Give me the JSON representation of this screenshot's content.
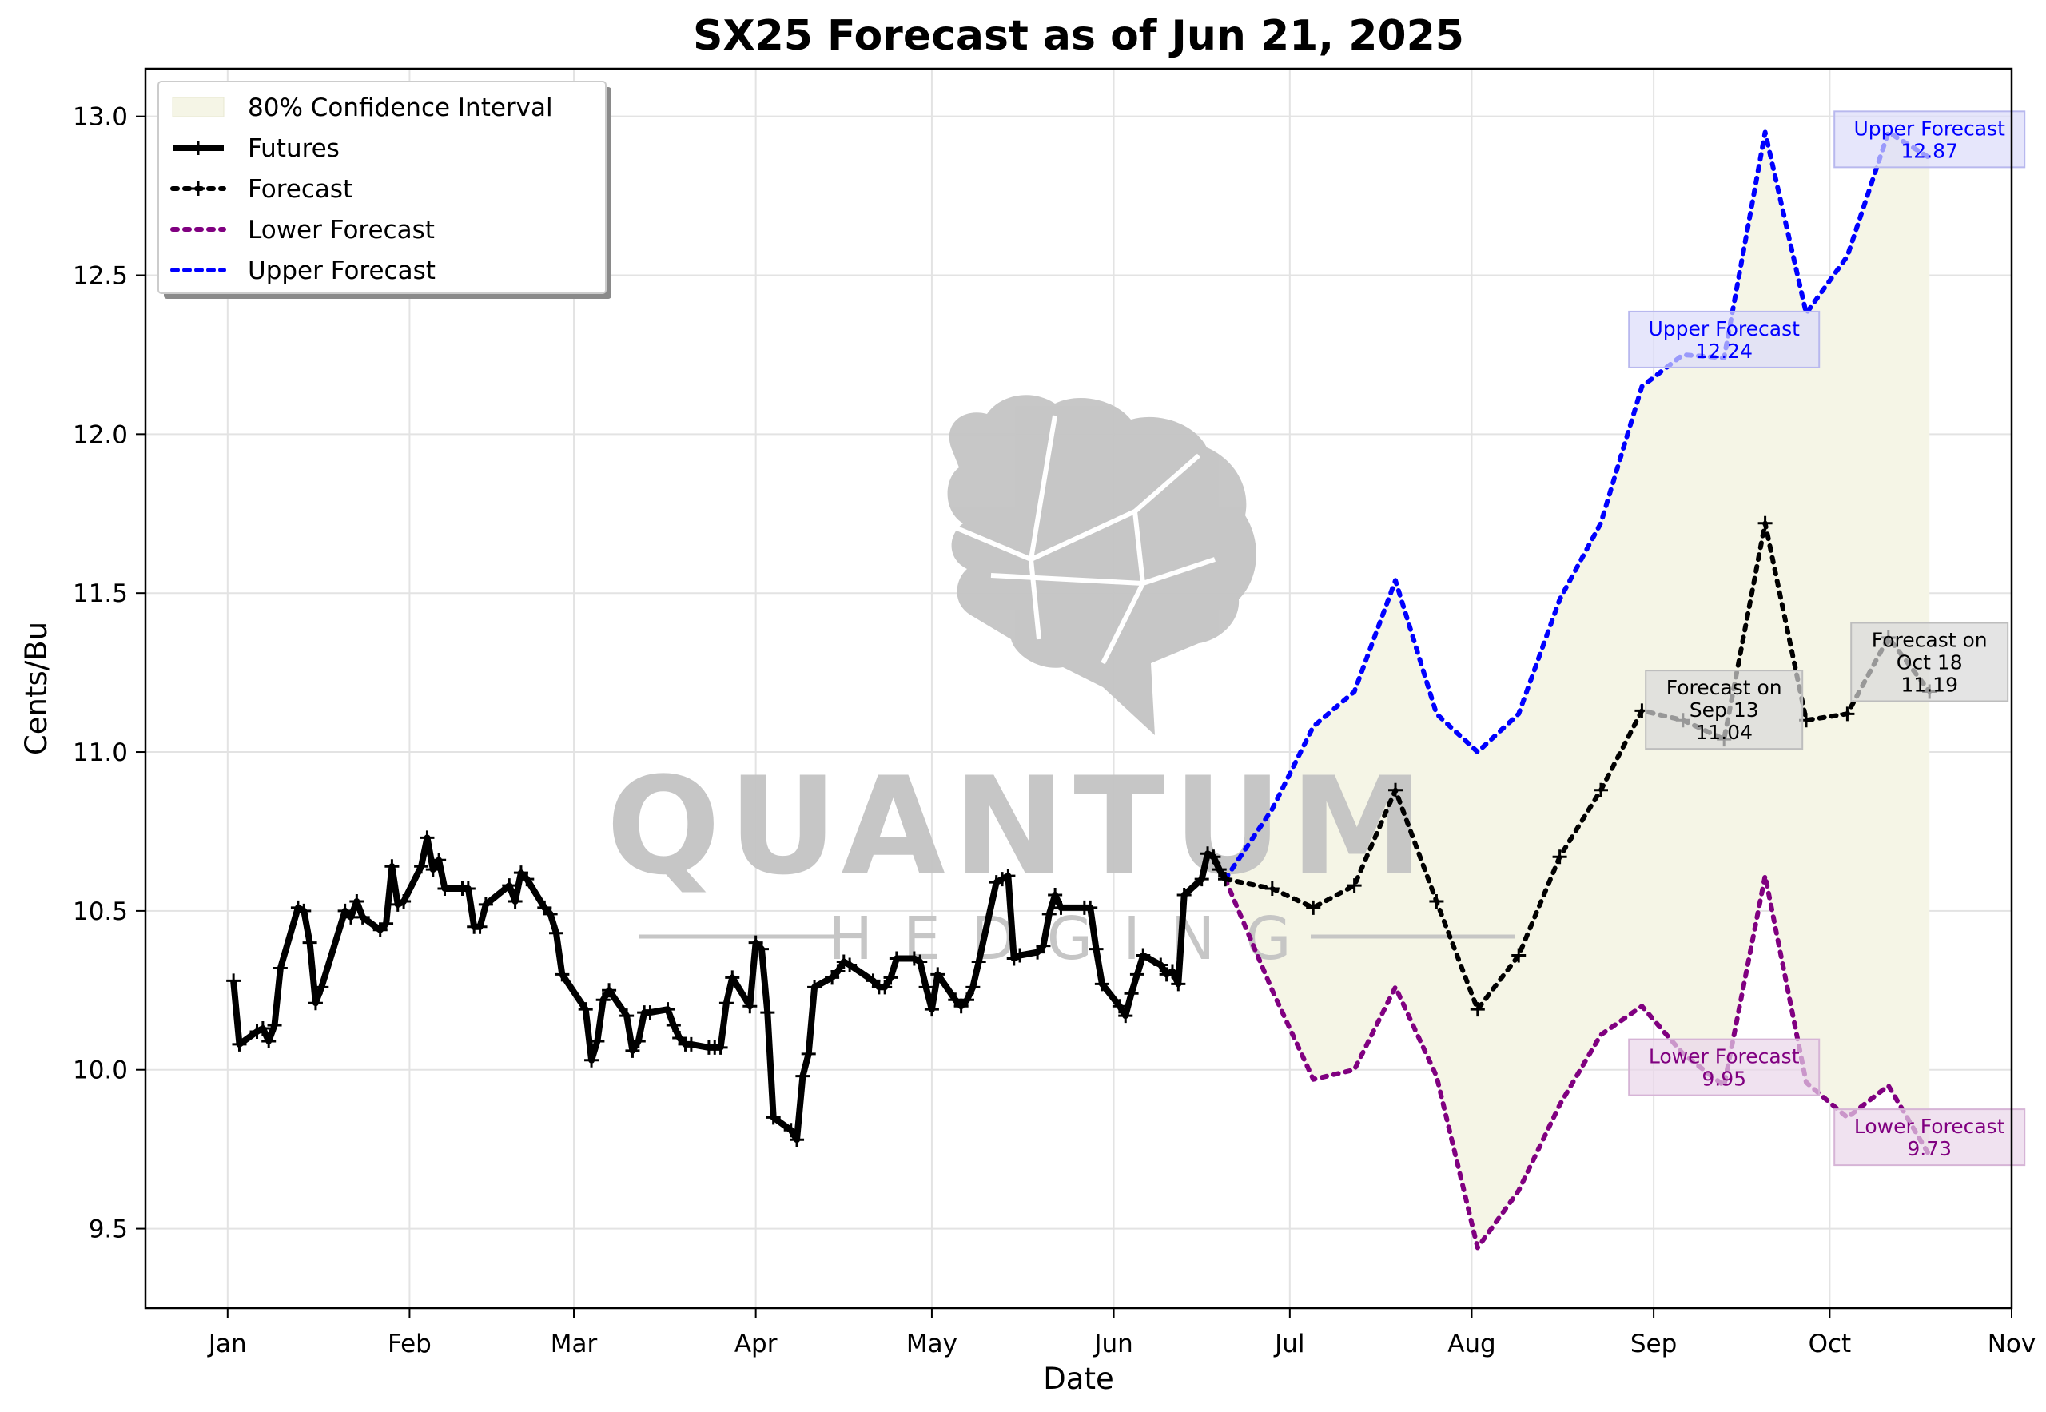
{
  "chart_data": {
    "type": "line",
    "title": "SX25 Forecast as of Jun 21, 2025",
    "xlabel": "Date",
    "ylabel": "Cents/Bu",
    "x_ticks": [
      "Jan",
      "Feb",
      "Mar",
      "Apr",
      "May",
      "Jun",
      "Jul",
      "Aug",
      "Sep",
      "Oct",
      "Nov"
    ],
    "x_tick_dates": [
      "2025-01-01",
      "2025-02-01",
      "2025-03-01",
      "2025-04-01",
      "2025-05-01",
      "2025-06-01",
      "2025-07-01",
      "2025-08-01",
      "2025-09-01",
      "2025-10-01",
      "2025-11-01"
    ],
    "y_ticks": [
      "9.5",
      "10.0",
      "10.5",
      "11.0",
      "11.5",
      "12.0",
      "12.5",
      "13.0"
    ],
    "y_tick_values": [
      9.5,
      10.0,
      10.5,
      11.0,
      11.5,
      12.0,
      12.5,
      13.0
    ],
    "xlim": [
      "2024-12-18",
      "2025-11-01"
    ],
    "ylim": [
      9.25,
      13.15
    ],
    "grid": true,
    "legend_position": "top-left",
    "colors": {
      "futures": "#000000",
      "forecast": "#000000",
      "lower": "#800080",
      "upper": "#0000ff",
      "ci_fill": "#f5f5e6",
      "upper_box": "#dcdcfa",
      "lower_box": "#ead6ea",
      "forecast_box": "#d8d8d8",
      "watermark": "#c4c4c4"
    },
    "watermark": {
      "brand": "QUANTUM",
      "tagline": "HEDGING"
    },
    "legend": [
      "80% Confidence Interval",
      "Futures",
      "Forecast",
      "Lower Forecast",
      "Upper Forecast"
    ],
    "series": [
      {
        "name": "Futures",
        "style": "solid",
        "markers": true,
        "points": [
          [
            "2025-01-02",
            10.28
          ],
          [
            "2025-01-03",
            10.08
          ],
          [
            "2025-01-06",
            10.12
          ],
          [
            "2025-01-07",
            10.13
          ],
          [
            "2025-01-08",
            10.09
          ],
          [
            "2025-01-09",
            10.14
          ],
          [
            "2025-01-10",
            10.32
          ],
          [
            "2025-01-13",
            10.51
          ],
          [
            "2025-01-14",
            10.5
          ],
          [
            "2025-01-15",
            10.4
          ],
          [
            "2025-01-16",
            10.21
          ],
          [
            "2025-01-17",
            10.26
          ],
          [
            "2025-01-21",
            10.5
          ],
          [
            "2025-01-22",
            10.48
          ],
          [
            "2025-01-23",
            10.53
          ],
          [
            "2025-01-24",
            10.48
          ],
          [
            "2025-01-27",
            10.44
          ],
          [
            "2025-01-28",
            10.46
          ],
          [
            "2025-01-29",
            10.64
          ],
          [
            "2025-01-30",
            10.52
          ],
          [
            "2025-01-31",
            10.53
          ],
          [
            "2025-02-03",
            10.64
          ],
          [
            "2025-02-04",
            10.73
          ],
          [
            "2025-02-05",
            10.63
          ],
          [
            "2025-02-06",
            10.66
          ],
          [
            "2025-02-07",
            10.57
          ],
          [
            "2025-02-10",
            10.57
          ],
          [
            "2025-02-11",
            10.57
          ],
          [
            "2025-02-12",
            10.45
          ],
          [
            "2025-02-13",
            10.45
          ],
          [
            "2025-02-14",
            10.52
          ],
          [
            "2025-02-18",
            10.58
          ],
          [
            "2025-02-19",
            10.53
          ],
          [
            "2025-02-20",
            10.62
          ],
          [
            "2025-02-21",
            10.6
          ],
          [
            "2025-02-24",
            10.51
          ],
          [
            "2025-02-25",
            10.49
          ],
          [
            "2025-02-26",
            10.43
          ],
          [
            "2025-02-27",
            10.3
          ],
          [
            "2025-03-03",
            10.19
          ],
          [
            "2025-03-04",
            10.03
          ],
          [
            "2025-03-05",
            10.09
          ],
          [
            "2025-03-06",
            10.22
          ],
          [
            "2025-03-07",
            10.25
          ],
          [
            "2025-03-10",
            10.17
          ],
          [
            "2025-03-11",
            10.06
          ],
          [
            "2025-03-12",
            10.09
          ],
          [
            "2025-03-13",
            10.18
          ],
          [
            "2025-03-14",
            10.18
          ],
          [
            "2025-03-17",
            10.19
          ],
          [
            "2025-03-18",
            10.14
          ],
          [
            "2025-03-19",
            10.1
          ],
          [
            "2025-03-20",
            10.08
          ],
          [
            "2025-03-21",
            10.08
          ],
          [
            "2025-03-24",
            10.07
          ],
          [
            "2025-03-25",
            10.07
          ],
          [
            "2025-03-26",
            10.07
          ],
          [
            "2025-03-27",
            10.21
          ],
          [
            "2025-03-28",
            10.29
          ],
          [
            "2025-03-31",
            10.2
          ],
          [
            "2025-04-01",
            10.4
          ],
          [
            "2025-04-02",
            10.38
          ],
          [
            "2025-04-03",
            10.18
          ],
          [
            "2025-04-04",
            9.85
          ],
          [
            "2025-04-07",
            9.81
          ],
          [
            "2025-04-08",
            9.78
          ],
          [
            "2025-04-09",
            9.98
          ],
          [
            "2025-04-10",
            10.05
          ],
          [
            "2025-04-11",
            10.26
          ],
          [
            "2025-04-14",
            10.29
          ],
          [
            "2025-04-15",
            10.31
          ],
          [
            "2025-04-16",
            10.34
          ],
          [
            "2025-04-17",
            10.33
          ],
          [
            "2025-04-21",
            10.28
          ],
          [
            "2025-04-22",
            10.26
          ],
          [
            "2025-04-23",
            10.26
          ],
          [
            "2025-04-24",
            10.29
          ],
          [
            "2025-04-25",
            10.35
          ],
          [
            "2025-04-28",
            10.35
          ],
          [
            "2025-04-29",
            10.34
          ],
          [
            "2025-04-30",
            10.26
          ],
          [
            "2025-05-01",
            10.19
          ],
          [
            "2025-05-02",
            10.3
          ],
          [
            "2025-05-05",
            10.22
          ],
          [
            "2025-05-06",
            10.2
          ],
          [
            "2025-05-07",
            10.22
          ],
          [
            "2025-05-08",
            10.26
          ],
          [
            "2025-05-09",
            10.34
          ],
          [
            "2025-05-12",
            10.59
          ],
          [
            "2025-05-13",
            10.6
          ],
          [
            "2025-05-14",
            10.61
          ],
          [
            "2025-05-15",
            10.35
          ],
          [
            "2025-05-16",
            10.36
          ],
          [
            "2025-05-19",
            10.37
          ],
          [
            "2025-05-20",
            10.39
          ],
          [
            "2025-05-21",
            10.49
          ],
          [
            "2025-05-22",
            10.55
          ],
          [
            "2025-05-23",
            10.51
          ],
          [
            "2025-05-27",
            10.51
          ],
          [
            "2025-05-28",
            10.51
          ],
          [
            "2025-05-29",
            10.38
          ],
          [
            "2025-05-30",
            10.27
          ],
          [
            "2025-06-02",
            10.2
          ],
          [
            "2025-06-03",
            10.17
          ],
          [
            "2025-06-04",
            10.24
          ],
          [
            "2025-06-05",
            10.3
          ],
          [
            "2025-06-06",
            10.36
          ],
          [
            "2025-06-09",
            10.33
          ],
          [
            "2025-06-10",
            10.3
          ],
          [
            "2025-06-11",
            10.31
          ],
          [
            "2025-06-12",
            10.27
          ],
          [
            "2025-06-13",
            10.55
          ],
          [
            "2025-06-16",
            10.6
          ],
          [
            "2025-06-17",
            10.68
          ],
          [
            "2025-06-18",
            10.67
          ],
          [
            "2025-06-19",
            10.63
          ],
          [
            "2025-06-20",
            10.6
          ]
        ]
      },
      {
        "name": "Forecast",
        "style": "dotted",
        "markers": true,
        "points": [
          [
            "2025-06-20",
            10.6
          ],
          [
            "2025-06-28",
            10.57
          ],
          [
            "2025-07-05",
            10.51
          ],
          [
            "2025-07-12",
            10.58
          ],
          [
            "2025-07-19",
            10.88
          ],
          [
            "2025-07-26",
            10.53
          ],
          [
            "2025-08-02",
            10.19
          ],
          [
            "2025-08-09",
            10.36
          ],
          [
            "2025-08-16",
            10.67
          ],
          [
            "2025-08-23",
            10.88
          ],
          [
            "2025-08-30",
            11.13
          ],
          [
            "2025-09-06",
            11.1
          ],
          [
            "2025-09-13",
            11.04
          ],
          [
            "2025-09-20",
            11.72
          ],
          [
            "2025-09-27",
            11.1
          ],
          [
            "2025-10-04",
            11.12
          ],
          [
            "2025-10-11",
            11.36
          ],
          [
            "2025-10-18",
            11.19
          ]
        ]
      },
      {
        "name": "Lower Forecast",
        "style": "dotted",
        "markers": false,
        "points": [
          [
            "2025-06-20",
            10.6
          ],
          [
            "2025-06-28",
            10.25
          ],
          [
            "2025-07-05",
            9.97
          ],
          [
            "2025-07-12",
            10.0
          ],
          [
            "2025-07-19",
            10.26
          ],
          [
            "2025-07-26",
            9.98
          ],
          [
            "2025-08-02",
            9.44
          ],
          [
            "2025-08-09",
            9.62
          ],
          [
            "2025-08-16",
            9.89
          ],
          [
            "2025-08-23",
            10.11
          ],
          [
            "2025-08-30",
            10.2
          ],
          [
            "2025-09-06",
            10.05
          ],
          [
            "2025-09-13",
            9.95
          ],
          [
            "2025-09-20",
            10.61
          ],
          [
            "2025-09-27",
            9.96
          ],
          [
            "2025-10-04",
            9.85
          ],
          [
            "2025-10-11",
            9.95
          ],
          [
            "2025-10-18",
            9.73
          ]
        ]
      },
      {
        "name": "Upper Forecast",
        "style": "dotted",
        "markers": false,
        "points": [
          [
            "2025-06-20",
            10.6
          ],
          [
            "2025-06-28",
            10.82
          ],
          [
            "2025-07-05",
            11.08
          ],
          [
            "2025-07-12",
            11.19
          ],
          [
            "2025-07-19",
            11.54
          ],
          [
            "2025-07-26",
            11.12
          ],
          [
            "2025-08-02",
            11.0
          ],
          [
            "2025-08-09",
            11.12
          ],
          [
            "2025-08-16",
            11.48
          ],
          [
            "2025-08-23",
            11.72
          ],
          [
            "2025-08-30",
            12.15
          ],
          [
            "2025-09-06",
            12.25
          ],
          [
            "2025-09-13",
            12.24
          ],
          [
            "2025-09-20",
            12.95
          ],
          [
            "2025-09-27",
            12.38
          ],
          [
            "2025-10-04",
            12.56
          ],
          [
            "2025-10-11",
            12.95
          ],
          [
            "2025-10-18",
            12.87
          ]
        ]
      }
    ],
    "annotations": [
      {
        "kind": "upper",
        "x": "2025-09-13",
        "y": 12.24,
        "lines": [
          "Upper Forecast",
          "12.24"
        ]
      },
      {
        "kind": "upper",
        "x": "2025-10-18",
        "y": 12.87,
        "lines": [
          "Upper Forecast",
          "12.87"
        ]
      },
      {
        "kind": "forecast",
        "x": "2025-09-13",
        "y": 11.04,
        "lines": [
          "Forecast on",
          "Sep 13",
          "11.04"
        ]
      },
      {
        "kind": "forecast",
        "x": "2025-10-18",
        "y": 11.19,
        "lines": [
          "Forecast on",
          "Oct 18",
          "11.19"
        ]
      },
      {
        "kind": "lower",
        "x": "2025-09-13",
        "y": 9.95,
        "lines": [
          "Lower Forecast",
          "9.95"
        ]
      },
      {
        "kind": "lower",
        "x": "2025-10-18",
        "y": 9.73,
        "lines": [
          "Lower Forecast",
          "9.73"
        ]
      }
    ]
  }
}
